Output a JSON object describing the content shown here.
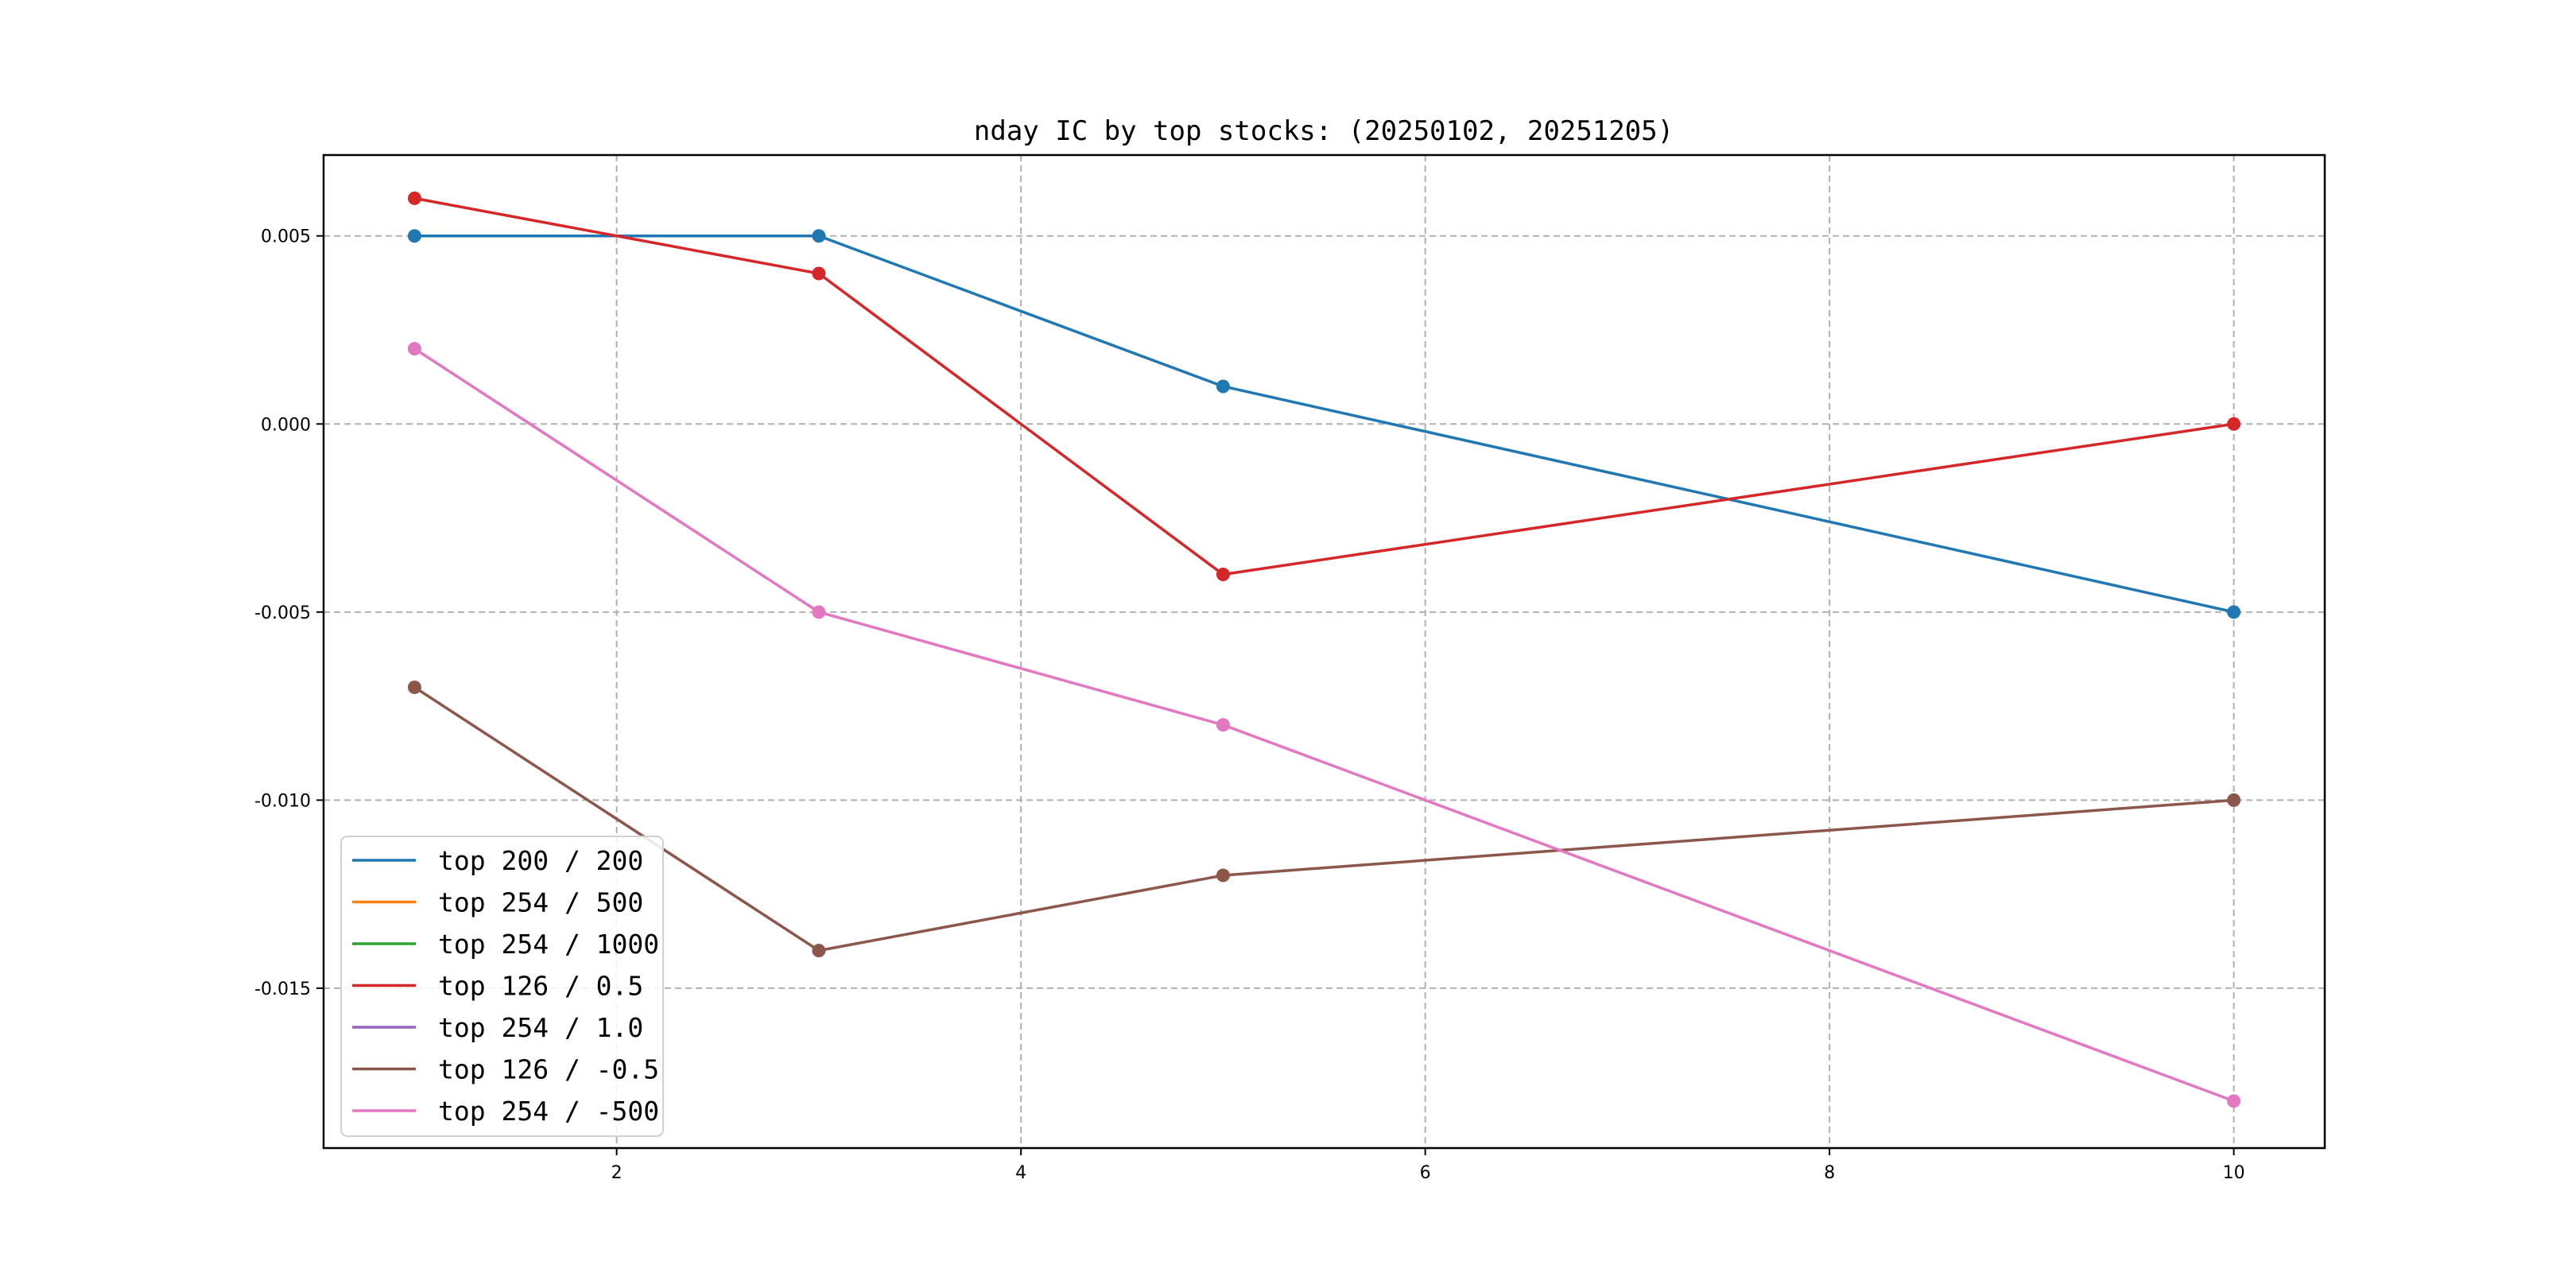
{
  "chart_data": {
    "type": "line",
    "title": "nday IC by top stocks: (20250102, 20251205)",
    "xlabel": "",
    "ylabel": "",
    "x": [
      1,
      3,
      5,
      10
    ],
    "xlim": [
      0.55,
      10.45
    ],
    "ylim": [
      -0.01925,
      0.00715
    ],
    "xticks": [
      2,
      4,
      6,
      8,
      10
    ],
    "xtick_labels": [
      "2",
      "4",
      "6",
      "8",
      "10"
    ],
    "yticks": [
      0.005,
      0.0,
      -0.005,
      -0.01,
      -0.015
    ],
    "ytick_labels": [
      "0.005",
      "0.000",
      "-0.005",
      "-0.010",
      "-0.015"
    ],
    "grid": true,
    "legend_position": "lower-left",
    "series": [
      {
        "name": "top 200 / 200",
        "color": "#1f77b4",
        "values": [
          0.005,
          0.005,
          0.001,
          -0.005
        ]
      },
      {
        "name": "top 254 / 500",
        "color": "#ff7f0e",
        "values": [
          null,
          null,
          null,
          null
        ]
      },
      {
        "name": "top 254 / 1000",
        "color": "#2ca02c",
        "values": [
          null,
          null,
          null,
          null
        ]
      },
      {
        "name": "top 126 / 0.5",
        "color": "#d62728",
        "values": [
          0.006,
          0.004,
          -0.004,
          0.0
        ]
      },
      {
        "name": "top 254 / 1.0",
        "color": "#9467bd",
        "values": [
          null,
          null,
          null,
          null
        ]
      },
      {
        "name": "top 126 / -0.5",
        "color": "#8c564b",
        "values": [
          -0.007,
          -0.014,
          -0.012,
          -0.01
        ]
      },
      {
        "name": "top 254 / -500",
        "color": "#e377c2",
        "values": [
          0.002,
          -0.005,
          -0.008,
          -0.018
        ]
      }
    ]
  }
}
